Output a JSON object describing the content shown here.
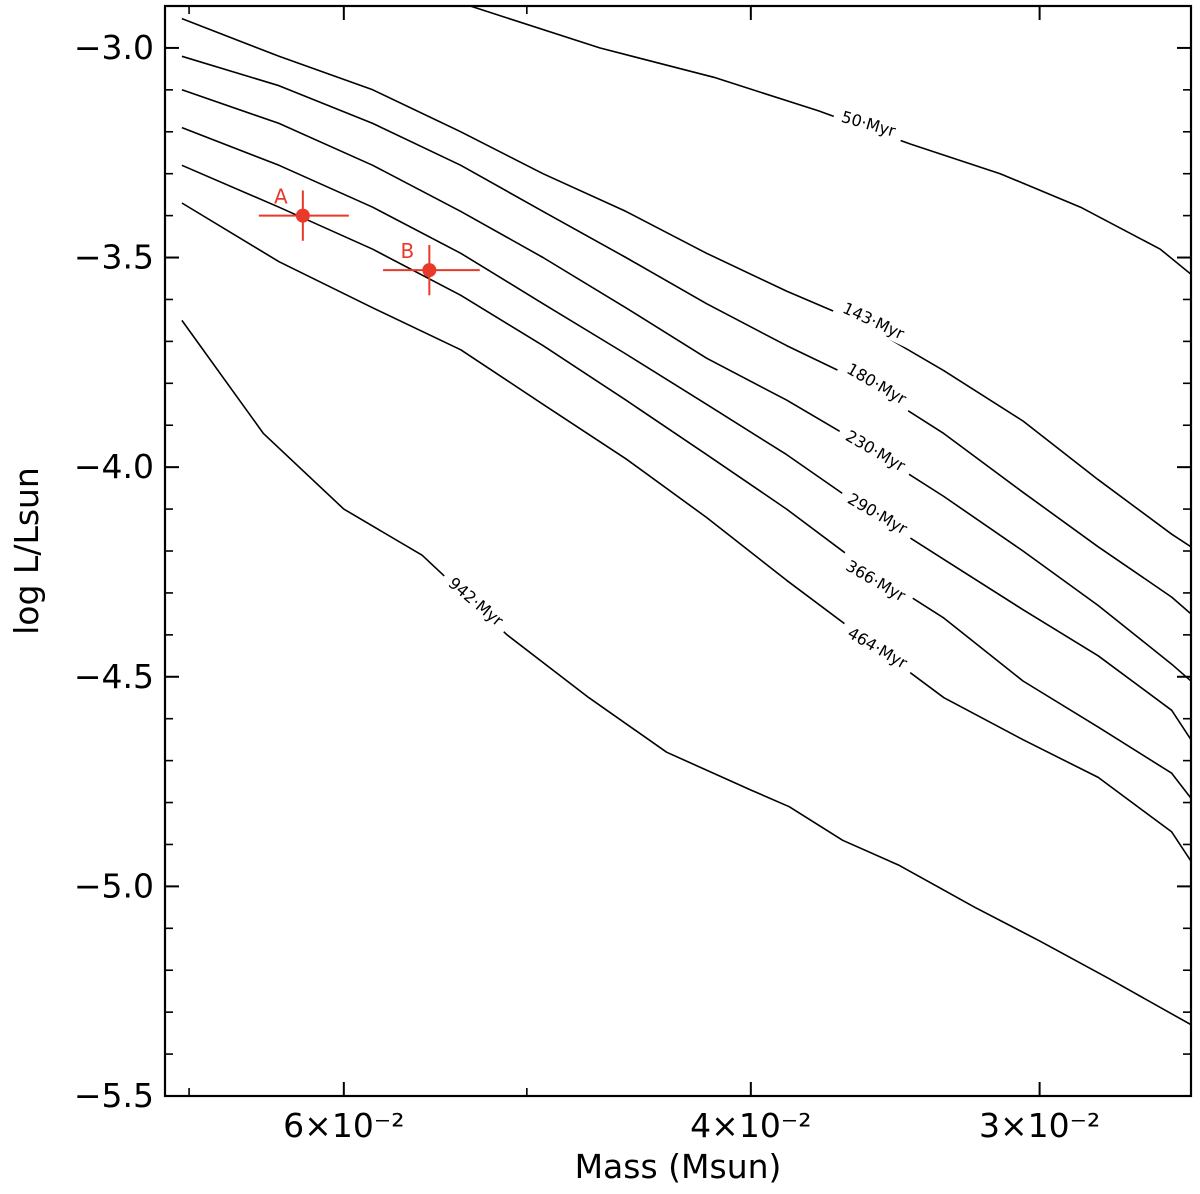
{
  "chart_data": {
    "type": "line",
    "title": "",
    "xlabel": "Mass (Msun)",
    "ylabel": "log L/Lsun",
    "xscale": "log",
    "xaxis_inverted": true,
    "xlim": [
      0.0717,
      0.0258
    ],
    "ylim": [
      -5.5,
      -2.9
    ],
    "grid": false,
    "legend": "none",
    "x_ticks": [
      {
        "value": 0.06,
        "label": "6×10⁻²"
      },
      {
        "value": 0.04,
        "label": "4×10⁻²"
      },
      {
        "value": 0.03,
        "label": "3×10⁻²"
      }
    ],
    "x_minor_ticks": [
      0.07,
      0.05,
      0.02
    ],
    "y_ticks": [
      {
        "value": -3.0,
        "label": "−3.0"
      },
      {
        "value": -3.5,
        "label": "−3.5"
      },
      {
        "value": -4.0,
        "label": "−4.0"
      },
      {
        "value": -4.5,
        "label": "−4.5"
      },
      {
        "value": -5.0,
        "label": "−5.0"
      },
      {
        "value": -5.5,
        "label": "−5.5"
      }
    ],
    "y_minor_step": 0.1,
    "series": [
      {
        "name": "50 Myr",
        "label": "50·Myr",
        "label_at": {
          "x": 0.03557,
          "y": -3.18,
          "angle": 16
        },
        "x": [
          0.0529,
          0.0465,
          0.0415,
          0.0374,
          0.0341,
          0.0312,
          0.0288,
          0.0266,
          0.0258
        ],
        "y": [
          -2.9,
          -3.0,
          -3.07,
          -3.15,
          -3.23,
          -3.3,
          -3.38,
          -3.48,
          -3.54
        ]
      },
      {
        "name": "143 Myr",
        "label": "143·Myr",
        "label_at": {
          "x": 0.03539,
          "y": -3.65,
          "angle": 25
        },
        "x": [
          0.0705,
          0.064,
          0.0583,
          0.0534,
          0.0492,
          0.0453,
          0.0418,
          0.0386,
          0.0357,
          0.033,
          0.0305,
          0.0283,
          0.0263,
          0.0258
        ],
        "y": [
          -2.93,
          -3.02,
          -3.1,
          -3.2,
          -3.3,
          -3.39,
          -3.49,
          -3.58,
          -3.66,
          -3.77,
          -3.89,
          -4.03,
          -4.16,
          -4.19
        ]
      },
      {
        "name": "180 Myr",
        "label": "180·Myr",
        "label_at": {
          "x": 0.03528,
          "y": -3.8,
          "angle": 30
        },
        "x": [
          0.0705,
          0.064,
          0.0583,
          0.0534,
          0.0492,
          0.0453,
          0.0418,
          0.0386,
          0.0357,
          0.033,
          0.0305,
          0.0283,
          0.0263,
          0.0258
        ],
        "y": [
          -3.02,
          -3.09,
          -3.18,
          -3.28,
          -3.39,
          -3.5,
          -3.61,
          -3.71,
          -3.8,
          -3.92,
          -4.06,
          -4.19,
          -4.31,
          -4.35
        ]
      },
      {
        "name": "230 Myr",
        "label": "230·Myr",
        "label_at": {
          "x": 0.03532,
          "y": -3.96,
          "angle": 30
        },
        "x": [
          0.0705,
          0.064,
          0.0583,
          0.0534,
          0.0492,
          0.0453,
          0.0418,
          0.0386,
          0.0357,
          0.033,
          0.0305,
          0.0283,
          0.0263,
          0.0258
        ],
        "y": [
          -3.1,
          -3.18,
          -3.28,
          -3.39,
          -3.5,
          -3.62,
          -3.74,
          -3.84,
          -3.95,
          -4.07,
          -4.2,
          -4.33,
          -4.47,
          -4.51
        ]
      },
      {
        "name": "290 Myr",
        "label": "290·Myr",
        "label_at": {
          "x": 0.03525,
          "y": -4.11,
          "angle": 30
        },
        "x": [
          0.0705,
          0.064,
          0.0583,
          0.0534,
          0.0492,
          0.0453,
          0.0418,
          0.0386,
          0.0357,
          0.033,
          0.0305,
          0.0283,
          0.0263,
          0.0258
        ],
        "y": [
          -3.19,
          -3.28,
          -3.38,
          -3.49,
          -3.61,
          -3.73,
          -3.85,
          -3.97,
          -4.1,
          -4.22,
          -4.34,
          -4.45,
          -4.58,
          -4.65
        ]
      },
      {
        "name": "366 Myr",
        "label": "366·Myr",
        "label_at": {
          "x": 0.03531,
          "y": -4.27,
          "angle": 30
        },
        "x": [
          0.0705,
          0.064,
          0.0583,
          0.0534,
          0.0492,
          0.0453,
          0.0418,
          0.0386,
          0.0357,
          0.033,
          0.0305,
          0.0283,
          0.0263,
          0.0258
        ],
        "y": [
          -3.28,
          -3.38,
          -3.48,
          -3.59,
          -3.71,
          -3.84,
          -3.97,
          -4.1,
          -4.24,
          -4.36,
          -4.51,
          -4.62,
          -4.73,
          -4.79
        ]
      },
      {
        "name": "464 Myr",
        "label": "464·Myr",
        "label_at": {
          "x": 0.03525,
          "y": -4.43,
          "angle": 30
        },
        "x": [
          0.0705,
          0.064,
          0.0583,
          0.0534,
          0.0492,
          0.0453,
          0.0418,
          0.0386,
          0.0357,
          0.033,
          0.0305,
          0.0283,
          0.0263,
          0.0258
        ],
        "y": [
          -3.37,
          -3.51,
          -3.62,
          -3.72,
          -3.85,
          -3.98,
          -4.12,
          -4.27,
          -4.41,
          -4.55,
          -4.65,
          -4.74,
          -4.87,
          -4.94
        ]
      },
      {
        "name": "942 Myr",
        "label": "942·Myr",
        "label_at": {
          "x": 0.05259,
          "y": -4.32,
          "angle": 40
        },
        "x": [
          0.0705,
          0.065,
          0.06,
          0.0555,
          0.051,
          0.047,
          0.0435,
          0.04,
          0.0385,
          0.0365,
          0.0345,
          0.032,
          0.03,
          0.028,
          0.0258
        ],
        "y": [
          -3.65,
          -3.92,
          -4.1,
          -4.21,
          -4.4,
          -4.55,
          -4.68,
          -4.77,
          -4.81,
          -4.89,
          -4.95,
          -5.05,
          -5.13,
          -5.22,
          -5.33
        ]
      }
    ],
    "points": [
      {
        "label": "A",
        "x": 0.0625,
        "y": -3.4,
        "x_err_low": 0.0028,
        "x_err_high": 0.0028,
        "y_err": 0.06,
        "color": "#e8392a"
      },
      {
        "label": "B",
        "x": 0.0551,
        "y": -3.53,
        "x_err_low": 0.0026,
        "x_err_high": 0.0027,
        "y_err": 0.06,
        "color": "#e8392a"
      }
    ]
  }
}
